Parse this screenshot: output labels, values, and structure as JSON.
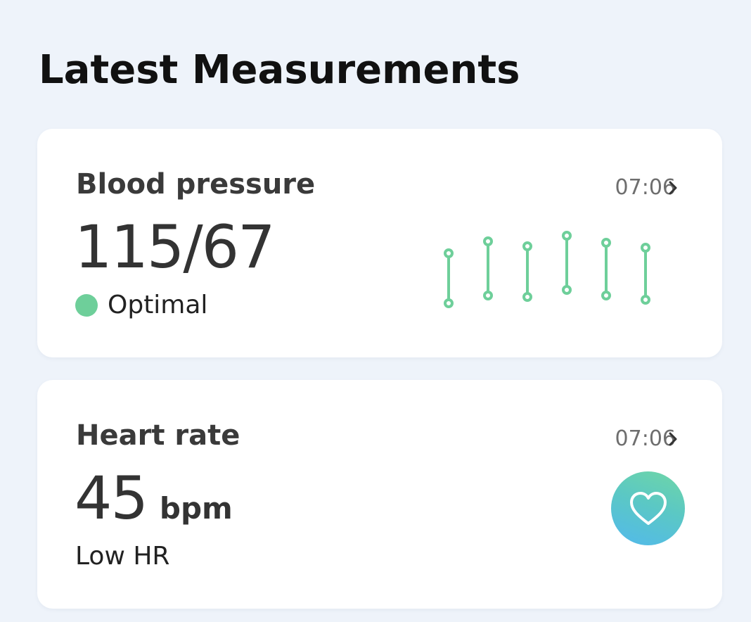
{
  "header": {
    "title": "Latest Measurements"
  },
  "blood_pressure": {
    "title": "Blood pressure",
    "time": "07:06",
    "value": "115/67",
    "status": "Optimal",
    "status_color": "#6ecf9a",
    "chart_color": "#6ecf9a"
  },
  "heart_rate": {
    "title": "Heart rate",
    "time": "07:06",
    "value": "45",
    "unit": "bpm",
    "status": "Low HR",
    "icon": "heart-icon",
    "badge_gradient": [
      "#6fd6a6",
      "#52b9ec"
    ]
  }
}
